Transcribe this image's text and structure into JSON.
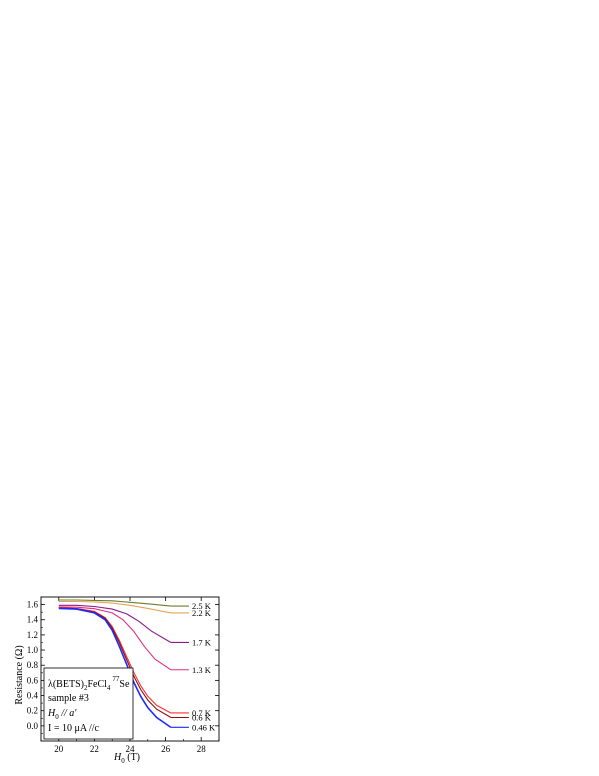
{
  "chart_data": {
    "type": "line",
    "xlabel": "H",
    "xlabel_sub": "0",
    "xlabel_unit": " (T)",
    "ylabel": "Resistance  (Ω)",
    "xlim": [
      19,
      29
    ],
    "ylim": [
      -0.2,
      1.7
    ],
    "xticks": [
      20,
      22,
      24,
      26,
      28
    ],
    "yticks": [
      0.0,
      0.2,
      0.4,
      0.6,
      0.8,
      1.0,
      1.2,
      1.4,
      1.6
    ],
    "series": [
      {
        "name": "2.5 K",
        "color": "#6b7d2a",
        "x": [
          20.0,
          21.0,
          22.0,
          23.0,
          24.0,
          25.0,
          26.3
        ],
        "y": [
          1.66,
          1.66,
          1.655,
          1.65,
          1.63,
          1.61,
          1.58
        ]
      },
      {
        "name": "2.2 K",
        "color": "#e8a35a",
        "x": [
          20.0,
          21.0,
          22.0,
          23.0,
          24.0,
          25.0,
          26.3
        ],
        "y": [
          1.64,
          1.64,
          1.635,
          1.62,
          1.59,
          1.55,
          1.49
        ]
      },
      {
        "name": "1.7 K",
        "color": "#8a1a8a",
        "x": [
          20.0,
          21.0,
          22.0,
          23.0,
          23.8,
          24.5,
          25.2,
          26.3
        ],
        "y": [
          1.59,
          1.59,
          1.575,
          1.54,
          1.48,
          1.38,
          1.25,
          1.1
        ]
      },
      {
        "name": "1.3 K",
        "color": "#e0307f",
        "x": [
          20.0,
          21.0,
          22.0,
          23.0,
          23.6,
          24.2,
          24.8,
          25.4,
          26.3
        ],
        "y": [
          1.57,
          1.565,
          1.545,
          1.49,
          1.4,
          1.25,
          1.05,
          0.88,
          0.74
        ]
      },
      {
        "name": "0.7 K",
        "color": "#ff3030",
        "x": [
          20.0,
          21.0,
          22.0,
          22.6,
          23.0,
          23.4,
          23.8,
          24.2,
          24.6,
          25.0,
          25.5,
          26.3
        ],
        "y": [
          1.56,
          1.55,
          1.51,
          1.43,
          1.31,
          1.13,
          0.92,
          0.71,
          0.53,
          0.39,
          0.27,
          0.17
        ]
      },
      {
        "name": "0.6 K",
        "color": "#8a1010",
        "x": [
          20.0,
          21.0,
          22.0,
          22.6,
          23.0,
          23.4,
          23.8,
          24.2,
          24.6,
          25.0,
          25.5,
          26.3
        ],
        "y": [
          1.555,
          1.545,
          1.5,
          1.42,
          1.29,
          1.1,
          0.88,
          0.66,
          0.48,
          0.34,
          0.22,
          0.11
        ]
      },
      {
        "name": "0.46 K",
        "color": "#1a2cff",
        "x": [
          20.0,
          21.0,
          22.0,
          22.6,
          23.0,
          23.4,
          23.8,
          24.2,
          24.6,
          25.0,
          25.5,
          26.3
        ],
        "y": [
          1.55,
          1.54,
          1.49,
          1.4,
          1.26,
          1.05,
          0.82,
          0.58,
          0.39,
          0.24,
          0.11,
          -0.02
        ]
      }
    ],
    "inset": {
      "line1_main": "λ(BETS)",
      "line1_sub1": "2",
      "line1_mid": "FeCl",
      "line1_sub2": "4",
      "line1_sup": "77",
      "line1_end": "Se",
      "line2": "sample #3",
      "line3_main": "H",
      "line3_sub": "0",
      "line3_rest": " // a'",
      "line4": "I = 10 μA //c"
    }
  }
}
